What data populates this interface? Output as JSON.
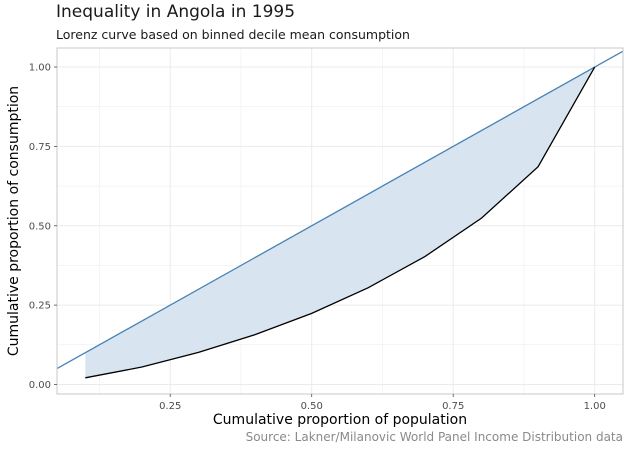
{
  "chart_data": {
    "type": "area",
    "title": "Inequality in Angola in 1995",
    "subtitle": "Lorenz curve based on binned decile mean consumption",
    "caption": "Source: Lakner/Milanovic World Panel Income Distribution data",
    "xlabel": "Cumulative proportion of population",
    "ylabel": "Cumulative proportion of consumption",
    "xlim": [
      0.05,
      1.05
    ],
    "ylim": [
      -0.03,
      1.06
    ],
    "x_ticks": [
      "0.25",
      "0.50",
      "0.75",
      "1.00"
    ],
    "y_ticks": [
      "0.00",
      "0.25",
      "0.50",
      "0.75",
      "1.00"
    ],
    "grid": true,
    "colors": {
      "lorenz": "#000000",
      "equality": "#4682b4",
      "fill": "#d8e4f0",
      "panel_border": "#c8c8c8",
      "grid": "#ebebeb"
    },
    "series": [
      {
        "x": [
          0.1,
          0.2,
          0.3,
          0.4,
          0.5,
          0.6,
          0.7,
          0.8,
          0.9,
          1.0
        ],
        "y": [
          0.021,
          0.055,
          0.101,
          0.157,
          0.224,
          0.305,
          0.403,
          0.524,
          0.686,
          1.0
        ]
      }
    ],
    "reference_line": {
      "type": "diagonal",
      "slope": 1,
      "intercept": 0
    }
  }
}
